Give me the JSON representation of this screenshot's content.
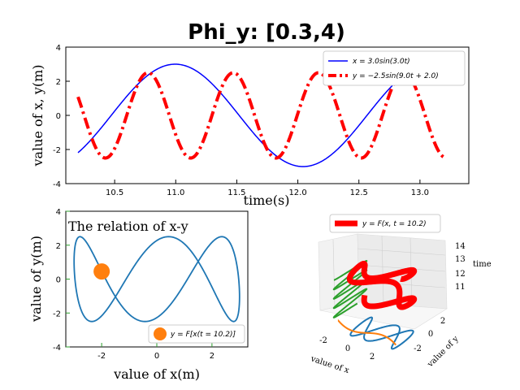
{
  "title": "Phi_y: [0.3,4)",
  "chart_data": [
    {
      "type": "line",
      "panel": "top",
      "xlabel": "time(s)",
      "ylabel": "value of x, y(m)",
      "xlim": [
        10.1,
        13.4
      ],
      "ylim": [
        -4,
        4
      ],
      "xticks": [
        "10.5",
        "11.0",
        "11.5",
        "12.0",
        "12.5",
        "13.0"
      ],
      "xtick_values": [
        10.5,
        11.0,
        11.5,
        12.0,
        12.5,
        13.0
      ],
      "yticks": [
        "-4",
        "-2",
        "0",
        "2",
        "4"
      ],
      "ytick_values": [
        -4,
        -2,
        0,
        2,
        4
      ],
      "t_range": [
        10.2,
        13.2
      ],
      "series": [
        {
          "name": "x = 3.0sin(3.0t)",
          "amplitude": 3.0,
          "omega": 3.0,
          "phase": 0.0,
          "color": "#0000ff",
          "style": "solid"
        },
        {
          "name": "y = −2.5sin(9.0t + 2.0)",
          "amplitude": -2.5,
          "omega": 9.0,
          "phase": 2.0,
          "color": "#ff0000",
          "style": "dashdot"
        }
      ],
      "legend": [
        "x = 3.0sin(3.0t)",
        "y = −2.5sin(9.0t + 2.0)"
      ],
      "legend_placement": "top-right"
    },
    {
      "type": "line",
      "panel": "bottom-left",
      "xlabel": "value of x(m)",
      "ylabel": "value of y(m)",
      "xlim": [
        -3.3,
        3.3
      ],
      "ylim": [
        -4,
        4
      ],
      "xticks": [
        "-2",
        "0",
        "2"
      ],
      "xtick_values": [
        -2,
        0,
        2
      ],
      "yticks": [
        "-4",
        "-2",
        "0",
        "2",
        "4"
      ],
      "ytick_values": [
        -4,
        -2,
        0,
        2,
        4
      ],
      "annotation": "The relation of x-y",
      "marker_point": {
        "x": -2.0,
        "y": 0.45,
        "color": "#ff7f0e"
      },
      "curve_color": "#1f77b4",
      "legend": [
        "y = F[x(t = 10.2)]"
      ],
      "legend_placement": "bottom-right"
    },
    {
      "type": "line",
      "panel": "bottom-right-3d",
      "xlabel": "value of x",
      "ylabel": "value of y",
      "zlabel": "time",
      "xticks": [
        "-2",
        "0",
        "2"
      ],
      "yticks": [
        "-2",
        "0",
        "2"
      ],
      "zticks": [
        "11",
        "12",
        "13",
        "14"
      ],
      "legend": [
        "y = F(x, t = 10.2)"
      ],
      "legend_placement": "top-left",
      "colors": {
        "trajectory": "#ff0000",
        "xz_projection": "#2ca02c",
        "xy_projection": "#1f77b4",
        "yz_projection": "#ff7f0e"
      }
    }
  ]
}
